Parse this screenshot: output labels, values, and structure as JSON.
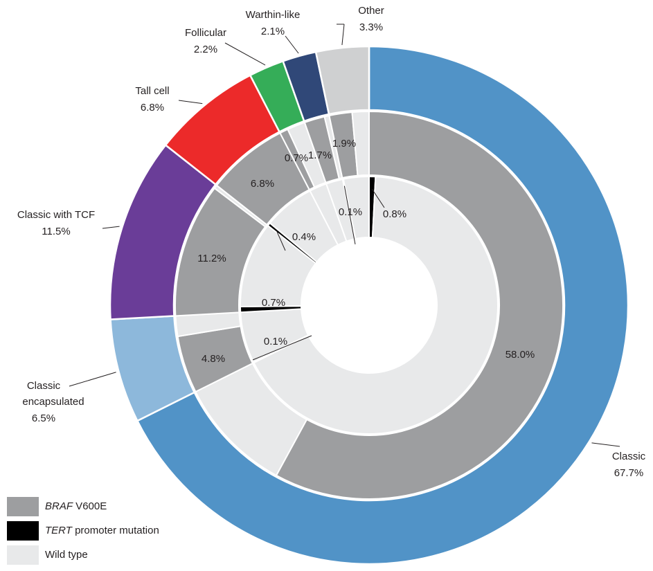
{
  "chart_data": {
    "type": "pie",
    "variant": "nested donut",
    "outer_ring": {
      "slices": [
        {
          "label": "Classic",
          "value": 67.7,
          "display": "67.7%",
          "color": "#5193c7"
        },
        {
          "label": "Classic encapsulated",
          "value": 6.5,
          "display": "6.5%",
          "color": "#8db8db"
        },
        {
          "label": "Classic with TCF",
          "value": 11.5,
          "display": "11.5%",
          "color": "#6a3d98"
        },
        {
          "label": "Tall cell",
          "value": 6.8,
          "display": "6.8%",
          "color": "#ec2a2a"
        },
        {
          "label": "Follicular",
          "value": 2.2,
          "display": "2.2%",
          "color": "#35ad58"
        },
        {
          "label": "Warthin-like",
          "value": 2.1,
          "display": "2.1%",
          "color": "#304878"
        },
        {
          "label": "Other",
          "value": 3.3,
          "display": "3.3%",
          "color": "#cfd0d1"
        }
      ]
    },
    "middle_ring": {
      "slices": [
        {
          "parent": "Classic",
          "status": "BRAF V600E",
          "value": 58.0,
          "display": "58.0%"
        },
        {
          "parent": "Classic",
          "status": "Wild type",
          "value": 9.7,
          "display": ""
        },
        {
          "parent": "Classic encapsulated",
          "status": "BRAF V600E",
          "value": 4.8,
          "display": "4.8%"
        },
        {
          "parent": "Classic encapsulated",
          "status": "Wild type",
          "value": 1.7,
          "display": ""
        },
        {
          "parent": "Classic with TCF",
          "status": "BRAF V600E",
          "value": 11.2,
          "display": "11.2%"
        },
        {
          "parent": "Classic with TCF",
          "status": "Wild type",
          "value": 0.3,
          "display": ""
        },
        {
          "parent": "Tall cell",
          "status": "BRAF V600E",
          "value": 6.8,
          "display": "6.8%"
        },
        {
          "parent": "Follicular",
          "status": "BRAF V600E",
          "value": 0.7,
          "display": "0.7%"
        },
        {
          "parent": "Follicular",
          "status": "Wild type",
          "value": 1.5,
          "display": ""
        },
        {
          "parent": "Warthin-like",
          "status": "BRAF V600E",
          "value": 1.7,
          "display": "1.7%"
        },
        {
          "parent": "Warthin-like",
          "status": "Wild type",
          "value": 0.4,
          "display": ""
        },
        {
          "parent": "Other",
          "status": "BRAF V600E",
          "value": 1.9,
          "display": "1.9%"
        },
        {
          "parent": "Other",
          "status": "Wild type",
          "value": 1.4,
          "display": ""
        }
      ]
    },
    "inner_ring": {
      "slices": [
        {
          "parent": "Classic",
          "status": "TERT promoter mutation",
          "value": 0.8,
          "display": "0.8%"
        },
        {
          "parent": "Classic",
          "status": "Wild type",
          "value": 66.9,
          "display": ""
        },
        {
          "parent": "Classic encapsulated",
          "status": "TERT promoter mutation",
          "value": 0.1,
          "display": "0.1%"
        },
        {
          "parent": "Classic encapsulated",
          "status": "Wild type",
          "value": 6.4,
          "display": ""
        },
        {
          "parent": "Classic with TCF",
          "status": "TERT promoter mutation",
          "value": 0.7,
          "display": "0.7%"
        },
        {
          "parent": "Classic with TCF",
          "status": "Wild type",
          "value": 10.8,
          "display": ""
        },
        {
          "parent": "Tall cell",
          "status": "TERT promoter mutation",
          "value": 0.4,
          "display": "0.4%"
        },
        {
          "parent": "Tall cell",
          "status": "Wild type",
          "value": 6.4,
          "display": ""
        },
        {
          "parent": "Follicular",
          "status": "Wild type",
          "value": 2.2,
          "display": ""
        },
        {
          "parent": "Warthin-like",
          "status": "Wild type",
          "value": 2.1,
          "display": ""
        },
        {
          "parent": "Other",
          "status": "TERT promoter mutation",
          "value": 0.1,
          "display": "0.1%"
        },
        {
          "parent": "Other",
          "status": "Wild type",
          "value": 3.2,
          "display": ""
        }
      ]
    },
    "status_colors": {
      "BRAF V600E": "#9d9ea0",
      "TERT promoter mutation": "#000000",
      "Wild type": "#e8e9ea"
    },
    "start_angle": "12 o'clock",
    "direction": "clockwise",
    "legend": {
      "placement": "bottom-left",
      "items": [
        {
          "italic": "BRAF",
          "rest": " V600E",
          "key": "BRAF V600E",
          "color": "#9d9ea0"
        },
        {
          "italic": "TERT",
          "rest": " promoter mutation",
          "key": "TERT promoter mutation",
          "color": "#000000"
        },
        {
          "italic": "",
          "rest": "Wild type",
          "key": "Wild type",
          "color": "#e8e9ea"
        }
      ]
    }
  }
}
